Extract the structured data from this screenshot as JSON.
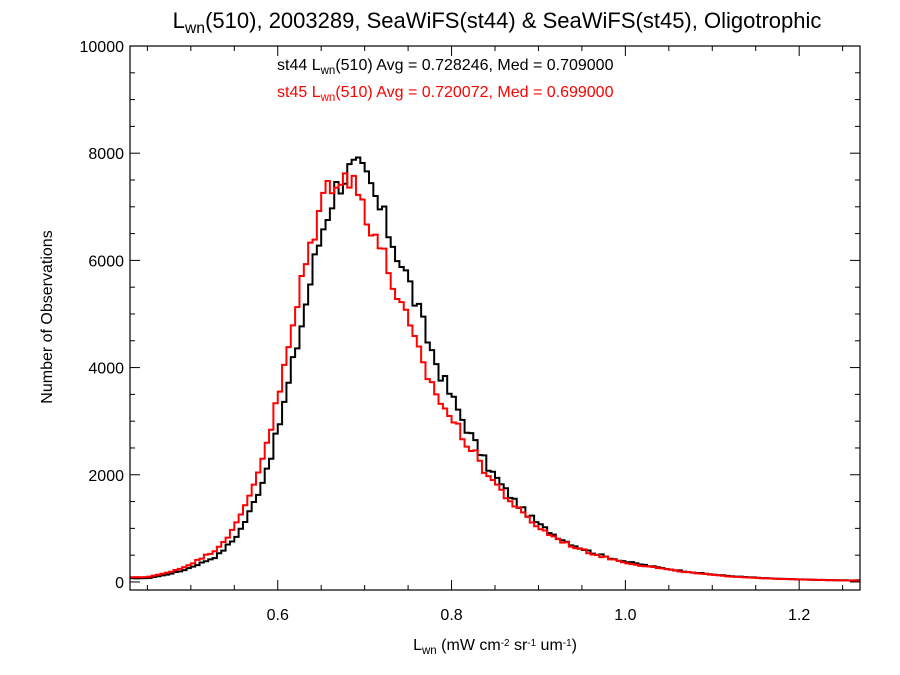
{
  "chart_data": {
    "type": "line",
    "style": "step-histogram",
    "title": {
      "parts": [
        {
          "text": "L"
        },
        {
          "text": "wn",
          "sub": true
        },
        {
          "text": "(510), 2003289, SeaWiFS(st44) & SeaWiFS(st45), Oligotrophic"
        }
      ]
    },
    "xlabel": {
      "parts": [
        {
          "text": "L"
        },
        {
          "text": "wn",
          "sub": true
        },
        {
          "text": " (mW cm"
        },
        {
          "text": "-2",
          "sup": true
        },
        {
          "text": " sr"
        },
        {
          "text": "-1",
          "sup": true
        },
        {
          "text": " um"
        },
        {
          "text": "-1",
          "sup": true
        },
        {
          "text": ")"
        }
      ]
    },
    "ylabel": "Number of Observations",
    "xlim": [
      0.43,
      1.27
    ],
    "ylim": [
      -150,
      10000
    ],
    "x_ticks": [
      "0.6",
      "0.8",
      "1.0",
      "1.2"
    ],
    "x_tick_values": [
      0.6,
      0.8,
      1.0,
      1.2
    ],
    "y_ticks": [
      "0",
      "2000",
      "4000",
      "6000",
      "8000",
      "10000"
    ],
    "y_tick_values": [
      0,
      2000,
      4000,
      6000,
      8000,
      10000
    ],
    "grid": false,
    "legend": [
      {
        "color": "#000000",
        "parts": [
          {
            "text": "st44 L"
          },
          {
            "text": "wn",
            "sub": true
          },
          {
            "text": "(510) Avg = 0.728246, Med = 0.709000"
          }
        ]
      },
      {
        "color": "#ff0000",
        "parts": [
          {
            "text": "st45 L"
          },
          {
            "text": "wn",
            "sub": true
          },
          {
            "text": "(510) Avg = 0.720072, Med = 0.699000"
          }
        ]
      }
    ],
    "legend_placement": "top-center",
    "bin_width": 0.005,
    "series": [
      {
        "id": "st44",
        "color": "#000000",
        "x": [
          0.45,
          0.47,
          0.49,
          0.51,
          0.53,
          0.55,
          0.56,
          0.57,
          0.58,
          0.59,
          0.6,
          0.61,
          0.62,
          0.63,
          0.64,
          0.65,
          0.66,
          0.67,
          0.68,
          0.69,
          0.7,
          0.71,
          0.72,
          0.73,
          0.74,
          0.75,
          0.76,
          0.77,
          0.78,
          0.79,
          0.8,
          0.82,
          0.84,
          0.86,
          0.88,
          0.9,
          0.92,
          0.94,
          0.96,
          0.98,
          1.0,
          1.02,
          1.04,
          1.06,
          1.08,
          1.1,
          1.12,
          1.14,
          1.16,
          1.18,
          1.2,
          1.22,
          1.24,
          1.26
        ],
        "y": [
          70,
          130,
          210,
          340,
          480,
          800,
          1050,
          1380,
          1780,
          2250,
          2800,
          3500,
          4250,
          5000,
          5800,
          6500,
          7050,
          7450,
          7650,
          7700,
          7550,
          7250,
          6850,
          6450,
          6050,
          5650,
          5150,
          4650,
          4200,
          3800,
          3450,
          2800,
          2200,
          1750,
          1380,
          1080,
          860,
          690,
          560,
          460,
          380,
          320,
          265,
          215,
          175,
          140,
          110,
          90,
          70,
          58,
          48,
          40,
          34,
          30
        ]
      },
      {
        "id": "st45",
        "color": "#ff0000",
        "x": [
          0.45,
          0.47,
          0.49,
          0.51,
          0.53,
          0.55,
          0.56,
          0.57,
          0.58,
          0.59,
          0.6,
          0.61,
          0.62,
          0.63,
          0.64,
          0.65,
          0.66,
          0.67,
          0.68,
          0.69,
          0.7,
          0.71,
          0.72,
          0.73,
          0.74,
          0.75,
          0.76,
          0.77,
          0.78,
          0.79,
          0.8,
          0.82,
          0.84,
          0.86,
          0.88,
          0.9,
          0.92,
          0.94,
          0.96,
          0.98,
          1.0,
          1.02,
          1.04,
          1.06,
          1.08,
          1.1,
          1.12,
          1.14,
          1.16,
          1.18,
          1.2,
          1.22,
          1.24,
          1.26
        ],
        "y": [
          90,
          160,
          260,
          420,
          620,
          1000,
          1320,
          1720,
          2200,
          2750,
          3400,
          4150,
          4950,
          5750,
          6450,
          7050,
          7450,
          7650,
          7550,
          7350,
          7000,
          6600,
          6150,
          5700,
          5250,
          4800,
          4350,
          3950,
          3600,
          3300,
          3050,
          2550,
          2050,
          1650,
          1300,
          1020,
          820,
          660,
          540,
          445,
          365,
          305,
          255,
          205,
          165,
          132,
          105,
          85,
          68,
          55,
          46,
          38,
          32,
          28
        ]
      }
    ]
  }
}
